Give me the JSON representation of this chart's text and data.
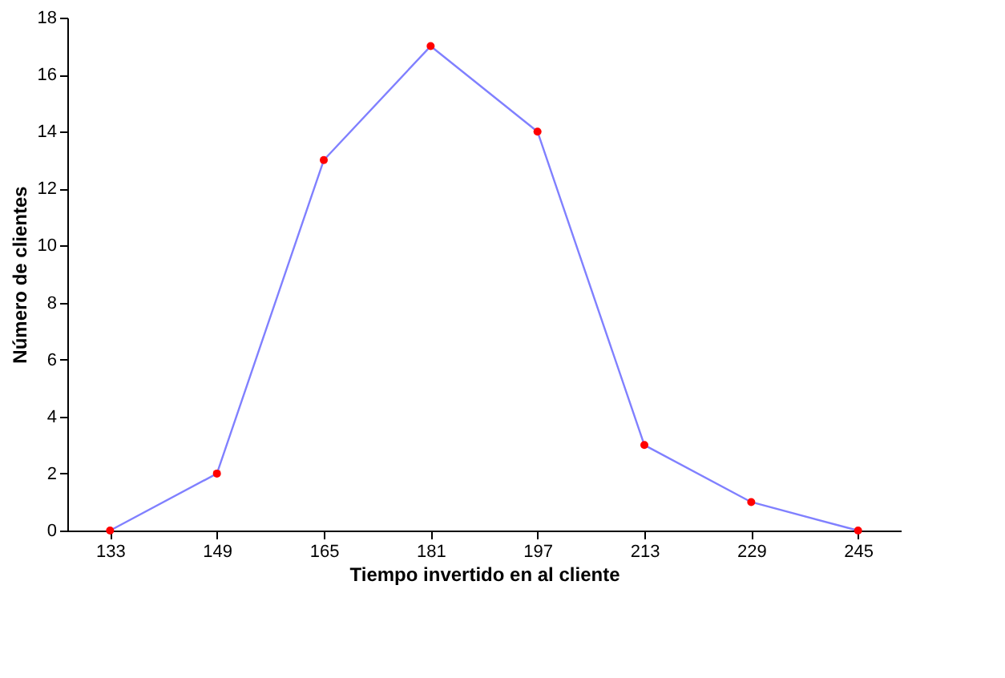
{
  "chart_data": {
    "type": "line",
    "xlabel": "Tiempo invertido en al cliente",
    "ylabel": "Número de clientes",
    "categories": [
      "133",
      "149",
      "165",
      "181",
      "197",
      "213",
      "229",
      "245"
    ],
    "series": [
      {
        "color": "#8080ff",
        "values": [
          0,
          2,
          13,
          17,
          14,
          3,
          1,
          0
        ]
      },
      {
        "type": "scatter",
        "marker": "circle",
        "color": "#ff0000",
        "values": [
          0,
          2,
          13,
          17,
          14,
          3,
          1,
          0
        ]
      }
    ],
    "ylim": [
      0,
      18
    ],
    "yticks": [
      0,
      2,
      4,
      6,
      8,
      10,
      12,
      14,
      16,
      18
    ],
    "grid": false
  }
}
